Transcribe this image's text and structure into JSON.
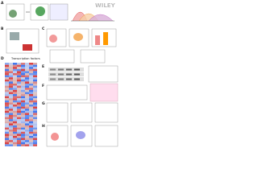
{
  "watermark": "WILEY",
  "panels": [
    {
      "label": "A"
    },
    {
      "label": "B"
    },
    {
      "label": "C"
    },
    {
      "label": "D"
    },
    {
      "label": "E"
    },
    {
      "label": "F"
    },
    {
      "label": "G"
    },
    {
      "label": "H"
    }
  ],
  "heatmap": {
    "title": "Transcription factors"
  }
}
